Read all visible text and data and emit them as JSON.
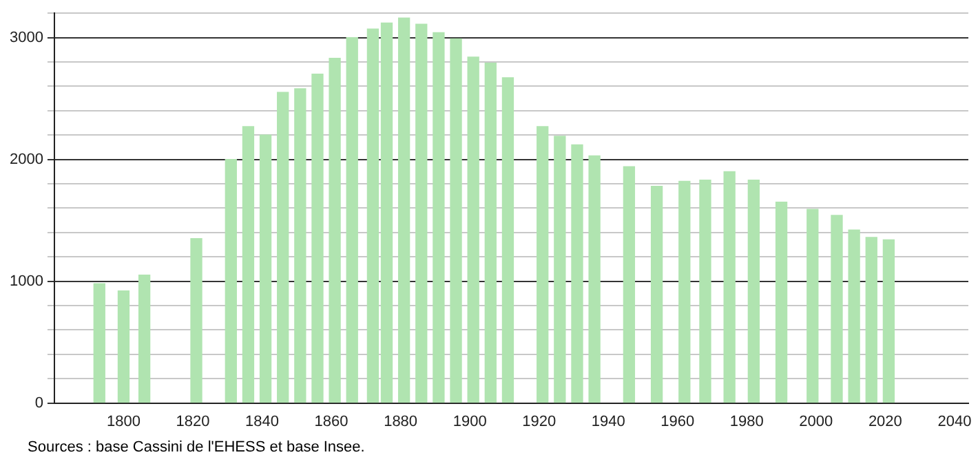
{
  "chart_data": {
    "type": "bar",
    "x": [
      1793,
      1800,
      1806,
      1821,
      1831,
      1836,
      1841,
      1846,
      1851,
      1856,
      1861,
      1866,
      1872,
      1876,
      1881,
      1886,
      1891,
      1896,
      1901,
      1906,
      1911,
      1921,
      1926,
      1931,
      1936,
      1946,
      1954,
      1962,
      1968,
      1975,
      1982,
      1990,
      1999,
      2006,
      2011,
      2016,
      2021
    ],
    "values": [
      980,
      920,
      1050,
      1350,
      2000,
      2270,
      2200,
      2550,
      2580,
      2700,
      2830,
      3000,
      3070,
      3120,
      3160,
      3110,
      3040,
      2990,
      2840,
      2790,
      2670,
      2270,
      2190,
      2120,
      2030,
      1940,
      1780,
      1820,
      1830,
      1900,
      1830,
      1650,
      1590,
      1540,
      1420,
      1360,
      1340
    ],
    "color": "#b0e4b0",
    "xlim": [
      1780,
      2044
    ],
    "xticks": [
      1800,
      1820,
      1840,
      1860,
      1880,
      1900,
      1920,
      1940,
      1960,
      1980,
      2000,
      2020,
      2040
    ],
    "ylim": [
      0,
      3200
    ],
    "yticks": [
      0,
      {
        "value": 200,
        "label": null
      },
      {
        "value": 400,
        "label": null
      },
      {
        "value": 600,
        "label": null
      },
      {
        "value": 800,
        "label": null
      },
      1000,
      {
        "value": 1200,
        "label": null
      },
      {
        "value": 1400,
        "label": null
      },
      {
        "value": 1600,
        "label": null
      },
      {
        "value": 1800,
        "label": null
      },
      2000,
      {
        "value": 2200,
        "label": null
      },
      {
        "value": 2400,
        "label": null
      },
      {
        "value": 2600,
        "label": null
      },
      {
        "value": 2800,
        "label": null
      },
      3000,
      {
        "value": 3200,
        "label": null
      }
    ],
    "grid": "y",
    "legend": false,
    "annotations": [
      "Sources : base Cassini de l'EHESS et base Insee."
    ]
  }
}
